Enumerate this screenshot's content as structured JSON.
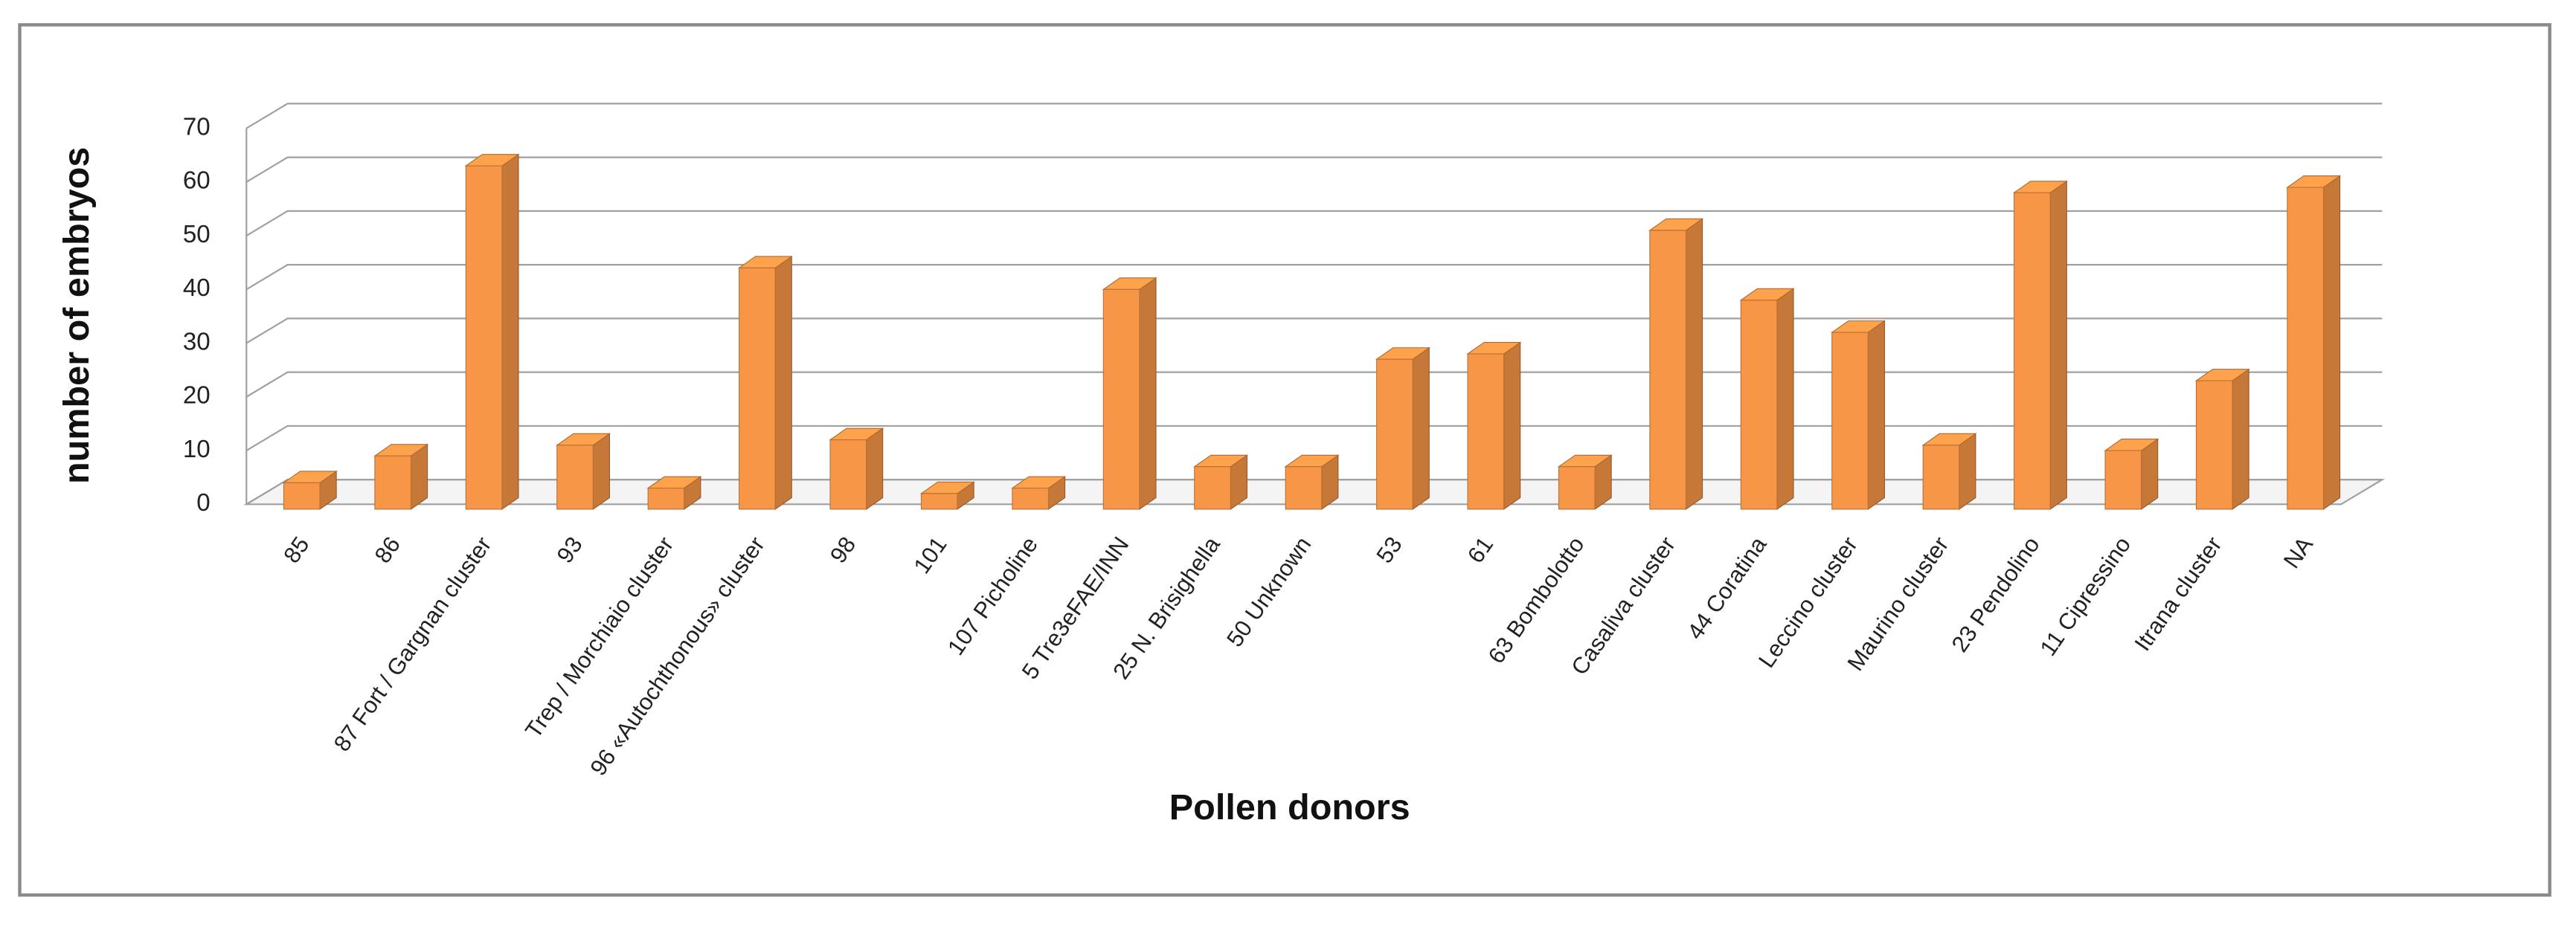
{
  "chart_data": {
    "type": "bar3d",
    "x_label": "Pollen donors",
    "y_label": "number of embryos",
    "categories": [
      "85",
      "86",
      "87 Fort / Gargnan cluster",
      "93",
      "Trep / Morchiaio cluster",
      "96 «Autochthonous» cluster",
      "98",
      "101",
      "107 Picholine",
      "5 Tre3eFAE/INN",
      "25 N. Brisighella",
      "50 Unknown",
      "53",
      "61",
      "63 Bombolotto",
      "Casaliva cluster",
      "44 Coratina",
      "Leccino cluster",
      "Maurino cluster",
      "23 Pendolino",
      "11 Cipressino",
      "Itrana cluster",
      "NA"
    ],
    "values": [
      4,
      9,
      63,
      11,
      3,
      44,
      12,
      2,
      3,
      40,
      7,
      7,
      27,
      28,
      7,
      51,
      38,
      32,
      11,
      58,
      10,
      23,
      59
    ],
    "color": "#f79646",
    "ylim": [
      0,
      70
    ],
    "yticks": [
      0,
      10,
      20,
      30,
      40,
      50,
      60,
      70
    ],
    "grid": true
  }
}
